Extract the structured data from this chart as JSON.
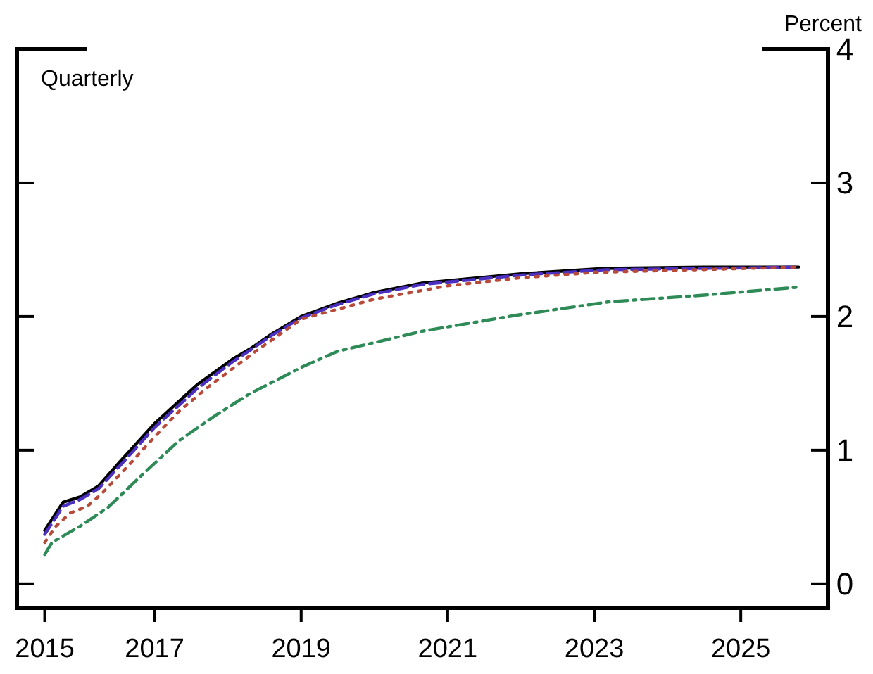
{
  "chart_data": {
    "type": "line",
    "ylabel": "Percent",
    "annotations": [
      "Quarterly"
    ],
    "xlim": [
      2015.12,
      2026.19
    ],
    "ylim": [
      -0.18,
      4
    ],
    "xticks": [
      {
        "value": 2015.5,
        "label": "2015"
      },
      2017,
      2019,
      2021,
      2023,
      2025
    ],
    "yticks": [
      0,
      1,
      2,
      3,
      4
    ],
    "series": [
      {
        "color": "#000000",
        "line_style": "solid",
        "x": [
          2015.5,
          2015.75,
          2015.98,
          2016.23,
          2016.52,
          2017.0,
          2017.58,
          2018.06,
          2018.31,
          2018.6,
          2019.0,
          2019.5,
          2020.0,
          2020.65,
          2022.0,
          2023.15,
          2024.5,
          2025.79
        ],
        "values": [
          0.4,
          0.61,
          0.65,
          0.73,
          0.91,
          1.2,
          1.49,
          1.68,
          1.76,
          1.87,
          2.0,
          2.1,
          2.18,
          2.25,
          2.32,
          2.36,
          2.37,
          2.37
        ]
      },
      {
        "color": "#4b2fc0",
        "line_style": "dashed",
        "x": [
          2015.5,
          2015.75,
          2015.98,
          2016.23,
          2016.52,
          2017.0,
          2017.58,
          2018.06,
          2018.31,
          2018.6,
          2019.0,
          2019.5,
          2020.0,
          2020.65,
          2022.0,
          2023.15,
          2024.5,
          2025.79
        ],
        "values": [
          0.37,
          0.58,
          0.63,
          0.71,
          0.88,
          1.17,
          1.46,
          1.66,
          1.75,
          1.86,
          1.99,
          2.09,
          2.17,
          2.24,
          2.31,
          2.35,
          2.36,
          2.37
        ]
      },
      {
        "color": "#b84a3a",
        "line_style": "dotted",
        "x": [
          2015.5,
          2015.65,
          2015.85,
          2016.08,
          2016.27,
          2016.65,
          2017.0,
          2017.35,
          2017.77,
          2018.38,
          2019.0,
          2020.0,
          2021.0,
          2022.0,
          2023.0,
          2025.79
        ],
        "values": [
          0.31,
          0.43,
          0.53,
          0.58,
          0.67,
          0.89,
          1.1,
          1.3,
          1.49,
          1.74,
          1.98,
          2.13,
          2.23,
          2.29,
          2.33,
          2.37
        ]
      },
      {
        "color": "#2e8b57",
        "line_style": "dashdot",
        "x": [
          2015.5,
          2015.6,
          2015.98,
          2016.36,
          2016.8,
          2017.33,
          2017.83,
          2018.29,
          2019.04,
          2019.5,
          2020.65,
          2021.94,
          2023.2,
          2024.5,
          2025.79
        ],
        "values": [
          0.22,
          0.31,
          0.43,
          0.57,
          0.8,
          1.07,
          1.26,
          1.42,
          1.63,
          1.74,
          1.89,
          2.01,
          2.11,
          2.16,
          2.22
        ]
      }
    ]
  }
}
